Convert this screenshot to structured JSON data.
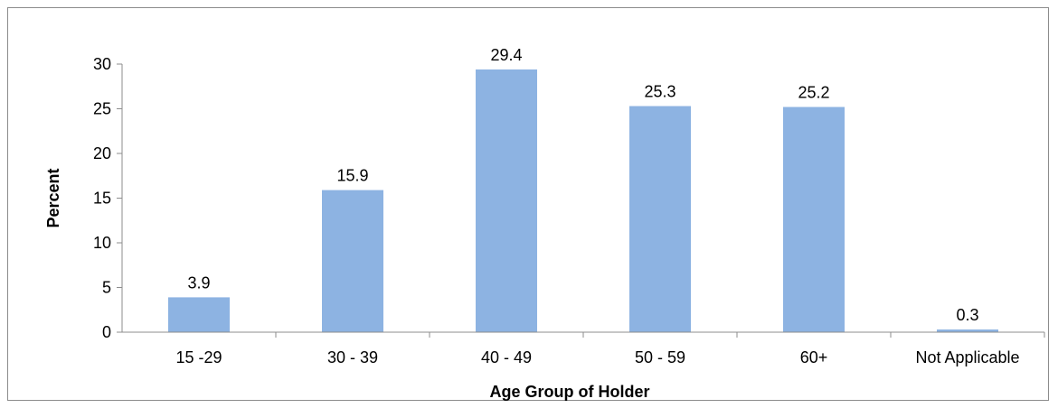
{
  "chart_data": {
    "type": "bar",
    "categories": [
      "15 -29",
      "30 - 39",
      "40 - 49",
      "50 - 59",
      "60+",
      "Not Applicable"
    ],
    "values": [
      3.9,
      15.9,
      29.4,
      25.3,
      25.2,
      0.3
    ],
    "data_labels": [
      "3.9",
      "15.9",
      "29.4",
      "25.3",
      "25.2",
      "0.3"
    ],
    "xlabel": "Age Group of Holder",
    "ylabel": "Percent",
    "ylim": [
      0,
      30
    ],
    "yticks": [
      "0",
      "5",
      "10",
      "15",
      "20",
      "25",
      "30"
    ],
    "grid": false,
    "legend": "none",
    "bar_color": "#8db3e2",
    "axis_color": "#8c8c8c"
  }
}
